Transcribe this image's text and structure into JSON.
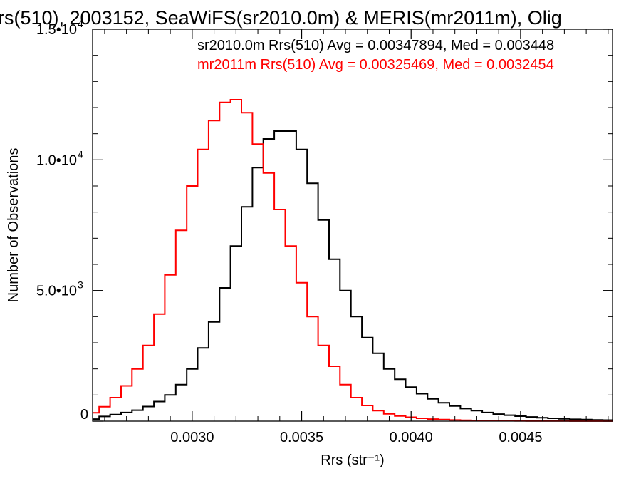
{
  "chart_data": {
    "type": "line",
    "style": "histogram-step",
    "title": "rs(510), 2003152, SeaWiFS(sr2010.0m) & MERIS(mr2011m), Olig",
    "xlabel": "Rrs (str⁻¹)",
    "ylabel": "Number of Observations",
    "xlim": [
      0.002545,
      0.00492
    ],
    "ylim": [
      0,
      15000
    ],
    "x_ticks": [
      {
        "value": 0.003,
        "label": "0.0030"
      },
      {
        "value": 0.0035,
        "label": "0.0035"
      },
      {
        "value": 0.004,
        "label": "0.0040"
      },
      {
        "value": 0.0045,
        "label": "0.0045"
      }
    ],
    "y_ticks": [
      {
        "value": 0,
        "mantissa": "0",
        "exponent": ""
      },
      {
        "value": 5000,
        "mantissa": "5.0•10",
        "exponent": "3"
      },
      {
        "value": 10000,
        "mantissa": "1.0•10",
        "exponent": "4"
      },
      {
        "value": 15000,
        "mantissa": "1.5•10",
        "exponent": "4"
      }
    ],
    "annotations": [
      {
        "text": "sr2010.0m Rrs(510) Avg = 0.00347894, Med = 0.003448",
        "color": "#000000"
      },
      {
        "text": "mr2011m Rrs(510) Avg = 0.00325469, Med = 0.0032454",
        "color": "#ff0000"
      }
    ],
    "series": [
      {
        "color": "#000000",
        "x": [
          0.00255,
          0.0026,
          0.00265,
          0.0027,
          0.00275,
          0.0028,
          0.00285,
          0.0029,
          0.00295,
          0.003,
          0.00305,
          0.0031,
          0.00315,
          0.0032,
          0.00325,
          0.0033,
          0.00335,
          0.0034,
          0.00345,
          0.0035,
          0.00355,
          0.0036,
          0.00365,
          0.0037,
          0.00375,
          0.0038,
          0.00385,
          0.0039,
          0.00395,
          0.004,
          0.00405,
          0.0041,
          0.00415,
          0.0042,
          0.00425,
          0.0043,
          0.00435,
          0.0044,
          0.00445,
          0.0045,
          0.00455,
          0.0046,
          0.00465,
          0.0047,
          0.00475,
          0.0048,
          0.00485,
          0.0049
        ],
        "values": [
          80,
          180,
          250,
          330,
          420,
          560,
          750,
          1000,
          1400,
          2000,
          2800,
          3800,
          5100,
          6700,
          8200,
          9700,
          10800,
          11100,
          11100,
          10400,
          9100,
          7700,
          6200,
          5000,
          4000,
          3200,
          2600,
          2000,
          1600,
          1300,
          1050,
          850,
          700,
          580,
          480,
          400,
          330,
          270,
          230,
          190,
          160,
          130,
          110,
          90,
          70,
          60,
          50,
          40
        ]
      },
      {
        "color": "#ff0000",
        "x": [
          0.00255,
          0.0026,
          0.00265,
          0.0027,
          0.00275,
          0.0028,
          0.00285,
          0.0029,
          0.00295,
          0.003,
          0.00305,
          0.0031,
          0.00315,
          0.0032,
          0.00325,
          0.0033,
          0.00335,
          0.0034,
          0.00345,
          0.0035,
          0.00355,
          0.0036,
          0.00365,
          0.0037,
          0.00375,
          0.0038,
          0.00385,
          0.0039,
          0.00395,
          0.004,
          0.00405,
          0.0041,
          0.00415,
          0.0042,
          0.00425,
          0.0043,
          0.00435,
          0.0044,
          0.00445,
          0.0045,
          0.00455,
          0.0046,
          0.00465,
          0.0047,
          0.00475,
          0.0048,
          0.00485,
          0.0049
        ],
        "values": [
          320,
          550,
          900,
          1350,
          2000,
          2900,
          4100,
          5600,
          7300,
          9000,
          10400,
          11500,
          12200,
          12300,
          11800,
          10600,
          9500,
          8100,
          6700,
          5300,
          4000,
          2900,
          2100,
          1400,
          900,
          600,
          400,
          280,
          200,
          150,
          110,
          80,
          60,
          45,
          35,
          28,
          22,
          18,
          14,
          11,
          9,
          7,
          6,
          5,
          4,
          3,
          2,
          2
        ]
      }
    ]
  }
}
